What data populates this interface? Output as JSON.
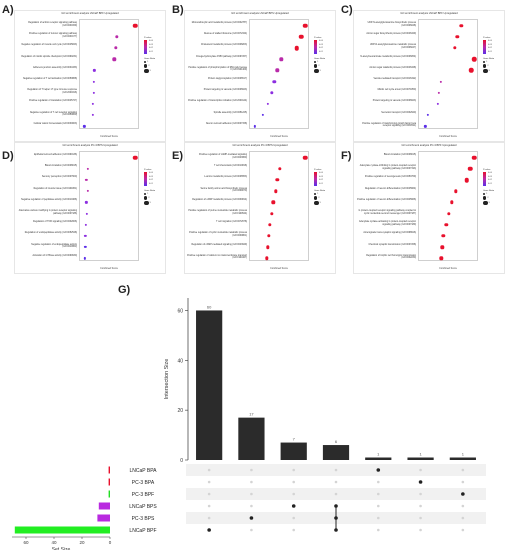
{
  "chart_data": [
    {
      "panel": "A)",
      "type": "scatter",
      "title": "GO enrichment analysis LNCaP BPF Upregulated",
      "xlabel": "Combined Score",
      "categories": [
        "Regulation of actinin receptor signaling pathway (GO:0030159)",
        "Positive regulation of tumour signaling pathway (GO:0030177)",
        "Negative regulation of muscle cell cycle (GO:0045843)",
        "Regulation of mitotic spindle checkpoint (GO:0090231)",
        "Adherens junction assembly (GO:0034333)",
        "Negative regulation of T cell activation (GO:0050868)",
        "Regulation of T helper 17 type immune response (GO:2000316)",
        "Positive regulation of translation (GO:0045727)",
        "Negative regulation of T cell receptor signaling (GO:0050860)",
        "Cellular cation homeostasis (GO:0030003)"
      ],
      "values": [
        0.95,
        0.62,
        0.6,
        0.58,
        0.22,
        0.21,
        0.21,
        0.2,
        0.2,
        0.04
      ],
      "sizes": [
        3,
        2,
        2,
        2,
        1,
        1,
        1,
        1,
        1,
        1
      ],
      "colors": [
        "#e8112d",
        "#b92aa9",
        "#b92aa9",
        "#b92aa9",
        "#8c2ee0",
        "#8c2ee0",
        "#8c2ee0",
        "#8c2ee0",
        "#8c2ee0",
        "#5b2ee8"
      ],
      "legend_color_title": "P-value",
      "legend_size_title": "Gene Ratio",
      "legend_color_ticks": [
        "0.04",
        "0.03",
        "0.02",
        "0.01"
      ],
      "legend_size_ticks": [
        "1",
        "2",
        "3"
      ]
    },
    {
      "panel": "B)",
      "type": "scatter",
      "title": "GO enrichment analysis LNCaP BPS Upregulated",
      "xlabel": "Combined Score",
      "categories": [
        "Monocarboxylic acid metabolic process (GO:0032787)",
        "Rescue of stalled ribosome (GO:0072344)",
        "Cholesterol metabolic process (GO:0008203)",
        "Omega-hydroxylase P450 pathway (GO:0097267)",
        "Positive regulation of phosphorylation of RNA polymerase II (GO:1901409)",
        "Protein deglycosylation (GO:0006517)",
        "Protein targeting to vacuole (GO:0006623)",
        "Positive regulation of transcription initiation (GO:2000144)",
        "Spindle assembly (GO:0051225)",
        "Neuron cell-cell adhesion (GO:0007158)"
      ],
      "values": [
        0.95,
        0.88,
        0.8,
        0.52,
        0.45,
        0.4,
        0.35,
        0.28,
        0.2,
        0.05
      ],
      "sizes": [
        3,
        3,
        3,
        2,
        2,
        2,
        2,
        1,
        1,
        1
      ],
      "colors": [
        "#e8112d",
        "#e8112d",
        "#e8112d",
        "#b92aa9",
        "#b92aa9",
        "#8c2ee0",
        "#8c2ee0",
        "#8c2ee0",
        "#5b2ee8",
        "#5b2ee8"
      ],
      "legend_color_title": "P-value",
      "legend_size_title": "Gene Ratio",
      "legend_color_ticks": [
        "0.04",
        "0.03",
        "0.02",
        "0.01"
      ],
      "legend_size_ticks": [
        "1",
        "2",
        "3"
      ]
    },
    {
      "panel": "C)",
      "type": "scatter",
      "title": "GO enrichment analysis LNCaP BPF Upregulated",
      "xlabel": "Combined Score",
      "categories": [
        "UDP-N-acetylglucosamine biosynthetic process (GO:0006048)",
        "Amino sugar biosynthetic process (GO:0046349)",
        "UDP-N-acetylglucosamine metabolic process (GO:0006047)",
        "N-acetylneuraminate metabolic process (GO:0006054)",
        "Amino sugar catabolic process (GO:0046348)",
        "Vesicle-mediated transport (GO:0016192)",
        "Mitotic cell cycle arrest (GO:0071850)",
        "Protein targeting to vacuole (GO:0006623)",
        "Secretion transport (GO:0032940)",
        "Positive regulation of transforming growth factor beta receptor signaling (GO:0030511)"
      ],
      "values": [
        0.72,
        0.65,
        0.6,
        0.95,
        0.9,
        0.35,
        0.32,
        0.3,
        0.12,
        0.08
      ],
      "sizes": [
        2,
        2,
        2,
        3,
        3,
        1,
        1,
        1,
        1,
        1
      ],
      "colors": [
        "#e8112d",
        "#e8112d",
        "#e8112d",
        "#e8112d",
        "#e8112d",
        "#b92aa9",
        "#b92aa9",
        "#8c2ee0",
        "#5b2ee8",
        "#5b2ee8"
      ],
      "legend_color_title": "P-value",
      "legend_size_title": "Gene Ratio",
      "legend_color_ticks": [
        "0.04",
        "0.03",
        "0.02",
        "0.01"
      ],
      "legend_size_ticks": [
        "1",
        "2",
        "3"
      ]
    },
    {
      "panel": "D)",
      "type": "scatter",
      "title": "GO enrichment analysis PC-3 BPS Upregulated",
      "xlabel": "Combined Score",
      "categories": [
        "Epithelial cell-cell adhesion (GO:0090136)",
        "Blood circulation (GO:0008015)",
        "Sensory perception (GO:0007600)",
        "Regulation of muscle tissue (GO:1901861)",
        "Negative regulation of peptidase activity (GO:0010466)",
        "Alternative various modifying G protein receptor signaling pathway (GO:0007186)",
        "Regulation of TOR signaling (GO:0032006)",
        "Regulation of endopeptidase activity (GO:0052548)",
        "Negative regulation of endopeptidase activity (GO:0010951)",
        "Activation of GTPase activity (GO:0090630)"
      ],
      "values": [
        0.95,
        0.1,
        0.08,
        0.1,
        0.08,
        0.09,
        0.07,
        0.06,
        0.06,
        0.05
      ],
      "sizes": [
        3,
        1,
        1,
        1,
        1,
        1,
        1,
        1,
        1,
        1
      ],
      "colors": [
        "#e8112d",
        "#b92aa9",
        "#b92aa9",
        "#b92aa9",
        "#8c2ee0",
        "#8c2ee0",
        "#8c2ee0",
        "#8c2ee0",
        "#5b2ee8",
        "#5b2ee8"
      ],
      "legend_color_title": "P-value",
      "legend_size_title": "Gene Ratio",
      "legend_color_ticks": [
        "0.04",
        "0.03",
        "0.02",
        "0.01"
      ],
      "legend_size_ticks": [
        "1",
        "2",
        "3"
      ]
    },
    {
      "panel": "E)",
      "type": "scatter",
      "title": "GO enrichment analysis PC-3 BPS Upregulated",
      "xlabel": "Combined Score",
      "categories": [
        "Positive regulation of cAMP-mediated signaling (GO:0043950)",
        "T cell chemotaxis (GO:0010818)",
        "L-amino metabolic process (GO:0006553)",
        "Serine family amino acid biosynthetic process (GO:0009070)",
        "Regulation of cAMP metabolic process (GO:0030814)",
        "Positive regulation of purine nucleotide metabolic process (GO:1900544)",
        "T cell migration (GO:0072678)",
        "Positive regulation of cyclic nucleotide metabolic process (GO:0030801)",
        "Regulation of cAMP-mediated signaling (GO:0043949)",
        "Positive regulation of calcium ion transmembrane transport (GO:1904427)"
      ],
      "values": [
        0.95,
        0.5,
        0.45,
        0.42,
        0.38,
        0.35,
        0.32,
        0.3,
        0.28,
        0.26
      ],
      "sizes": [
        3,
        2,
        2,
        2,
        2,
        2,
        2,
        2,
        2,
        2
      ],
      "colors": [
        "#e8112d",
        "#e8112d",
        "#e8112d",
        "#e8112d",
        "#e8112d",
        "#e8112d",
        "#e8112d",
        "#e8112d",
        "#e8112d",
        "#e8112d"
      ],
      "legend_color_title": "P-value",
      "legend_size_title": "Gene Ratio",
      "legend_color_ticks": [
        "0.04",
        "0.03",
        "0.02",
        "0.01"
      ],
      "legend_size_ticks": [
        "1",
        "2",
        "3"
      ]
    },
    {
      "panel": "F)",
      "type": "scatter",
      "title": "GO enrichment analysis PC-3 BPF Upregulated",
      "xlabel": "Combined Score",
      "categories": [
        "Blood circulation (GO:0008015)",
        "Adenylate cyclase-inhibiting G protein-coupled receptor signaling pathway (GO:0007193)",
        "Positive regulation of neurogenesis (GO:0050769)",
        "Regulation of neuron differentiation (GO:0045664)",
        "Positive regulation of neuron differentiation (GO:0045666)",
        "G protein-coupled receptor signaling pathway coupled to cyclic nucleotide second messenger (GO:0007187)",
        "Adenylate cyclase-activating G protein-coupled receptor signaling pathway (GO:0007189)",
        "Anterograde trans-synaptic signaling (GO:0098916)",
        "Chemical synaptic transmission (GO:0007268)",
        "Regulation of trophic cell homotypic transmission (GO:0032230)"
      ],
      "values": [
        0.95,
        0.88,
        0.82,
        0.62,
        0.55,
        0.5,
        0.45,
        0.4,
        0.38,
        0.36
      ],
      "sizes": [
        3,
        3,
        3,
        2,
        2,
        2,
        2,
        2,
        2,
        2
      ],
      "colors": [
        "#e8112d",
        "#e8112d",
        "#e8112d",
        "#e8112d",
        "#e8112d",
        "#e8112d",
        "#e8112d",
        "#e8112d",
        "#e8112d",
        "#e8112d"
      ],
      "legend_color_title": "P-value",
      "legend_size_title": "Gene Ratio",
      "legend_color_ticks": [
        "0.04",
        "0.03",
        "0.02",
        "0.01"
      ],
      "legend_size_ticks": [
        "1",
        "2",
        "3"
      ]
    },
    {
      "panel": "G)",
      "type": "bar",
      "subtype": "upset",
      "ylabel": "Intersection Size",
      "ylim": [
        0,
        65
      ],
      "yticks": [
        0,
        20,
        40,
        60
      ],
      "intersection_values": [
        60,
        17,
        7,
        6,
        1,
        1,
        1
      ],
      "intersection_labels": [
        "60",
        "17",
        "7",
        "6",
        "1",
        "1",
        "1"
      ],
      "sets": [
        "LNCaP BPA",
        "PC-3 BPA",
        "PC-3 BPF",
        "LNCaP BPS",
        "PC-3 BPS",
        "LNCaP BPF"
      ],
      "set_sizes": [
        1,
        1,
        1,
        8,
        9,
        68
      ],
      "set_colors": [
        "#e8112d",
        "#e8112d",
        "#22dd22",
        "#b92ae0",
        "#b92ae0",
        "#22ee22"
      ],
      "set_size_xlabel": "Set Size",
      "set_size_ticks": [
        "60",
        "40",
        "20",
        "0"
      ],
      "set_size_xlim": [
        0,
        70
      ],
      "membership": [
        [
          5
        ],
        [
          4
        ],
        [
          3
        ],
        [
          3,
          4,
          5
        ],
        [
          0
        ],
        [
          1
        ],
        [
          2
        ]
      ]
    }
  ]
}
